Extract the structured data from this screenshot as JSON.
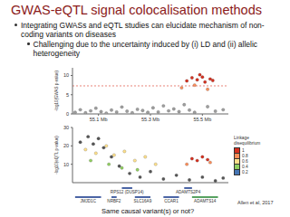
{
  "title": "GWAS-eQTL signal colocalisation methods",
  "bullets": [
    {
      "text": "Integrating GWASs and eQTL studies can elucidate mechanism of non-coding variants on diseases",
      "sub": [
        "Challenging due to the uncertainty induced by (i) LD and (ii) allelic heterogeneity"
      ]
    }
  ],
  "citation": "Allen et al, 2017",
  "caption": "Same causal variant(s) or not?",
  "ld_legend": {
    "title": "Linkage disequilibrium",
    "levels": [
      {
        "value": 1,
        "color": "#d7301f"
      },
      {
        "value": 0.8,
        "color": "#fc8d59"
      },
      {
        "value": 0.6,
        "color": "#fee08b"
      },
      {
        "value": 0.4,
        "color": "#91cf60"
      },
      {
        "value": 0.2,
        "color": "#4575b4"
      }
    ]
  },
  "genes": [
    {
      "name": "JMJD1C",
      "start": 55.01,
      "end": 55.11,
      "row": 1
    },
    {
      "name": "NRBF2",
      "start": 55.15,
      "end": 55.17,
      "row": 1
    },
    {
      "name": "SLC16A9",
      "start": 55.24,
      "end": 55.3,
      "row": 1
    },
    {
      "name": "CCAR1",
      "start": 55.35,
      "end": 55.41,
      "row": 1
    },
    {
      "name": "ADAMTS14",
      "start": 55.46,
      "end": 55.56,
      "row": 1,
      "color": "#2e8b3a"
    },
    {
      "name": "RPS12 (DUSP14)",
      "start": 55.19,
      "end": 55.23,
      "row": 0
    },
    {
      "name": "ADAMTS2P4",
      "start": 55.43,
      "end": 55.46,
      "row": 0
    }
  ],
  "chart_data": [
    {
      "type": "scatter",
      "y_label": "-log10(GWAS p-value)",
      "xlim": [
        55.0,
        55.6
      ],
      "xticks": [
        {
          "value": 55.1,
          "label": "55.1 Mb"
        },
        {
          "value": 55.3,
          "label": "55.3 Mb"
        },
        {
          "value": 55.5,
          "label": "55.5 Mb"
        }
      ],
      "ylim": [
        0,
        12
      ],
      "yticks": [
        0,
        5,
        10
      ],
      "threshold": 7.3,
      "series": [
        {
          "color": "#9e9e9e",
          "x": [
            55.01,
            55.03,
            55.05,
            55.07,
            55.09,
            55.11,
            55.13,
            55.15,
            55.17,
            55.19,
            55.21,
            55.23,
            55.25,
            55.27,
            55.29,
            55.31,
            55.33,
            55.35,
            55.37,
            55.39,
            55.41,
            55.43,
            55.45,
            55.47,
            55.52,
            55.55,
            55.58
          ],
          "values": [
            0.4,
            1.1,
            0.3,
            0.8,
            1.5,
            0.6,
            0.2,
            1.0,
            0.5,
            1.8,
            0.7,
            0.3,
            1.2,
            0.9,
            0.4,
            1.6,
            0.5,
            2.1,
            0.8,
            1.3,
            0.6,
            2.4,
            1.0,
            0.4,
            1.9,
            0.7,
            1.1
          ]
        },
        {
          "color": "#fc8d59",
          "x": [
            55.42,
            55.47,
            55.52
          ],
          "values": [
            6.8,
            7.5,
            6.4
          ]
        },
        {
          "color": "#d7301f",
          "x": [
            55.44,
            55.46,
            55.48,
            55.49,
            55.5,
            55.51,
            55.53,
            55.54
          ],
          "values": [
            8.6,
            9.4,
            8.9,
            10.2,
            9.6,
            8.3,
            9.1,
            8.7
          ]
        }
      ]
    },
    {
      "type": "scatter",
      "y_label": "-log10(eQTL p-value)",
      "tick_labels": "y",
      "xlim": [
        55.0,
        55.6
      ],
      "ylim": [
        0,
        30
      ],
      "yticks": [
        0,
        10,
        20,
        30
      ],
      "series": [
        {
          "color": "#555555",
          "x": [
            55.03,
            55.06,
            55.08,
            55.1,
            55.12,
            55.15,
            55.18,
            55.22,
            55.26,
            55.3,
            55.35,
            55.4,
            55.45,
            55.5,
            55.55,
            55.58
          ],
          "values": [
            22,
            25,
            21,
            24,
            19,
            14,
            9,
            5,
            3,
            6,
            2,
            4,
            1.5,
            3,
            1,
            2.5
          ]
        },
        {
          "color": "#fee08b",
          "x": [
            55.05,
            55.09,
            55.13,
            55.16,
            55.2,
            55.24,
            55.28,
            55.32
          ],
          "values": [
            18,
            16,
            20,
            15,
            17,
            12,
            14,
            10
          ]
        },
        {
          "color": "#91cf60",
          "x": [
            55.07,
            55.14,
            55.19,
            55.25
          ],
          "values": [
            12,
            10,
            8,
            7
          ]
        },
        {
          "color": "#fc8d59",
          "x": [
            55.44,
            55.53
          ],
          "values": [
            10,
            11
          ]
        },
        {
          "color": "#d7301f",
          "x": [
            55.46,
            55.48,
            55.5,
            55.52
          ],
          "values": [
            13,
            12,
            14,
            12.5
          ]
        }
      ]
    }
  ]
}
